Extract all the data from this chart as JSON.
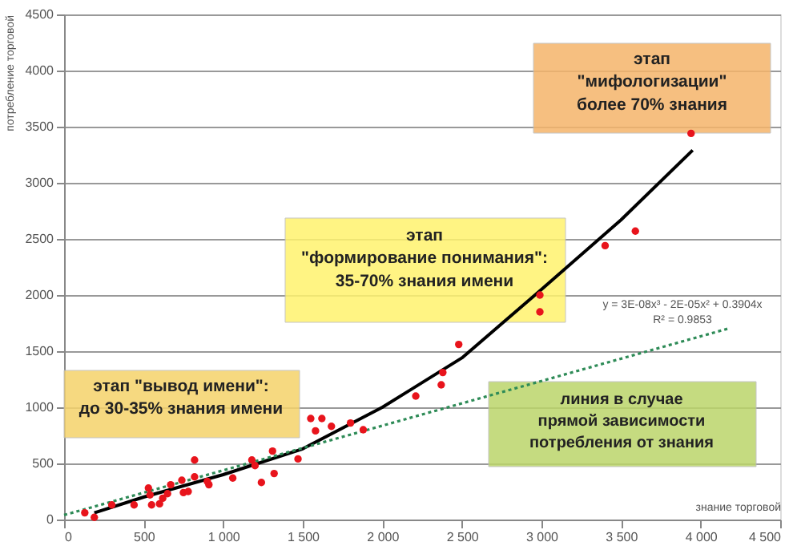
{
  "chart_data": {
    "type": "scatter",
    "xlabel": "знание торговой",
    "ylabel": "потребление торговой",
    "xlim": [
      0,
      4500
    ],
    "ylim": [
      0,
      4500
    ],
    "xticks": [
      0,
      500,
      {
        "value": 1000,
        "label": "1 000"
      },
      {
        "value": 1500,
        "label": "1 500"
      },
      {
        "value": 2000,
        "label": "2 000"
      },
      {
        "value": 2500,
        "label": "2 500"
      },
      {
        "value": 3000,
        "label": "3 000"
      },
      {
        "value": 3500,
        "label": "3 500"
      },
      {
        "value": 4000,
        "label": "4 000"
      },
      {
        "value": 4500,
        "label": "4 500"
      }
    ],
    "yticks": [
      0,
      500,
      1000,
      1500,
      2000,
      2500,
      3000,
      3500,
      4000,
      4500
    ],
    "grid": "y",
    "series": [
      {
        "color": "#e8141c",
        "marker": "circle",
        "x": [
          130,
          190,
          300,
          440,
          530,
          540,
          550,
          600,
          620,
          650,
          670,
          740,
          750,
          780,
          820,
          820,
          910,
          900,
          1060,
          1180,
          1200,
          1310,
          1320,
          1240,
          1470,
          1550,
          1580,
          1620,
          1680,
          1800,
          1880,
          2210,
          2370,
          2380,
          2480,
          2990,
          2990,
          3400,
          3590,
          3940
        ],
        "values": [
          60,
          20,
          130,
          130,
          280,
          220,
          130,
          140,
          190,
          230,
          310,
          350,
          240,
          250,
          530,
          380,
          310,
          340,
          370,
          530,
          480,
          610,
          410,
          330,
          540,
          900,
          790,
          900,
          830,
          860,
          800,
          1100,
          1200,
          1310,
          1560,
          2000,
          1850,
          2440,
          2570,
          3440
        ]
      },
      {
        "type": "line",
        "color": "#000000",
        "line_style": "solid",
        "x": [
          190,
          500,
          1000,
          1500,
          2000,
          2500,
          3000,
          3500,
          3950
        ],
        "values": [
          60,
          200,
          400,
          630,
          1000,
          1440,
          2050,
          2670,
          3290
        ]
      },
      {
        "type": "line",
        "color": "#2e8b57",
        "line_style": "dotted",
        "x": [
          0,
          4170
        ],
        "values": [
          40,
          1700
        ]
      }
    ],
    "annotations": [
      "этап \"вывод имени\":\nдо 30-35% знания имени",
      "этап\n\"формирование понимания\":\n35-70% знания имени",
      "этап\n\"мифологизации\"\nболее 70% знания",
      "линия в случае\nпрямой зависимости\nпотребления от знания",
      "y = 3E-08x³ - 2E-05x² + 0.3904x\nR² = 0.9853"
    ]
  }
}
